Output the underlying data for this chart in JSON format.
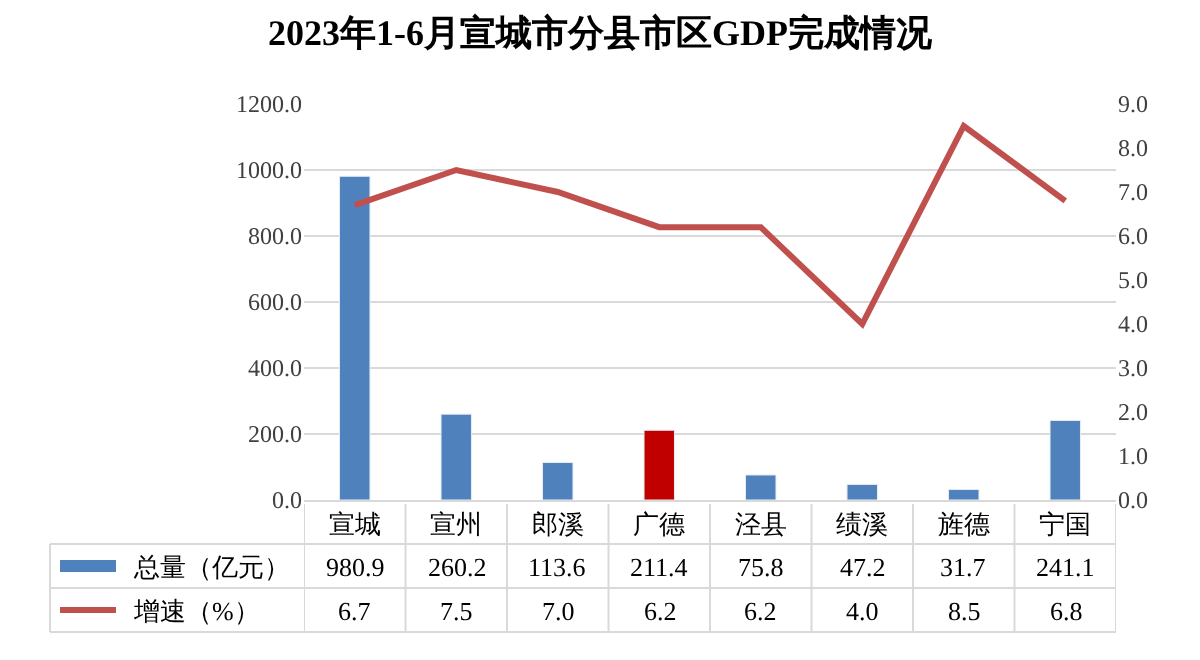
{
  "chart_data": {
    "type": "bar",
    "title": "2023年1-6月宣城市分县市区GDP完成情况",
    "categories": [
      "宣城",
      "宣州",
      "郎溪",
      "广德",
      "泾县",
      "绩溪",
      "旌德",
      "宁国"
    ],
    "series": [
      {
        "name": "总量（亿元）",
        "colors": [
          "#4f81bd",
          "#4f81bd",
          "#4f81bd",
          "#c00000",
          "#4f81bd",
          "#4f81bd",
          "#4f81bd",
          "#4f81bd"
        ],
        "color": "#4f81bd",
        "values": [
          980.9,
          260.2,
          113.6,
          211.4,
          75.8,
          47.2,
          31.7,
          241.1
        ],
        "value_labels": [
          "980.9",
          "260.2",
          "113.6",
          "211.4",
          "75.8",
          "47.2",
          "31.7",
          "241.1"
        ]
      },
      {
        "name": "增速（%）",
        "type": "line",
        "axis": "y2",
        "color": "#c0504d",
        "values": [
          6.7,
          7.5,
          7.0,
          6.2,
          6.2,
          4.0,
          8.5,
          6.8
        ],
        "value_labels": [
          "6.7",
          "7.5",
          "7.0",
          "6.2",
          "6.2",
          "4.0",
          "8.5",
          "6.8"
        ]
      }
    ],
    "ylim": [
      0,
      1200
    ],
    "yticks": [
      {
        "value": 0,
        "label": "0.0"
      },
      {
        "value": 200,
        "label": "200.0"
      },
      {
        "value": 400,
        "label": "400.0"
      },
      {
        "value": 600,
        "label": "600.0"
      },
      {
        "value": 800,
        "label": "800.0"
      },
      {
        "value": 1000,
        "label": "1000.0"
      },
      {
        "value": 1200,
        "label": "1200.0"
      }
    ],
    "y2lim": [
      0,
      9
    ],
    "y2ticks": [
      {
        "value": 0,
        "label": "0.0"
      },
      {
        "value": 1,
        "label": "1.0"
      },
      {
        "value": 2,
        "label": "2.0"
      },
      {
        "value": 3,
        "label": "3.0"
      },
      {
        "value": 4,
        "label": "4.0"
      },
      {
        "value": 5,
        "label": "5.0"
      },
      {
        "value": 6,
        "label": "6.0"
      },
      {
        "value": 7,
        "label": "7.0"
      },
      {
        "value": 8,
        "label": "8.0"
      },
      {
        "value": 9,
        "label": "9.0"
      }
    ],
    "grid": "y",
    "legend": "bottom",
    "marker": "none",
    "line_style": "solid"
  }
}
